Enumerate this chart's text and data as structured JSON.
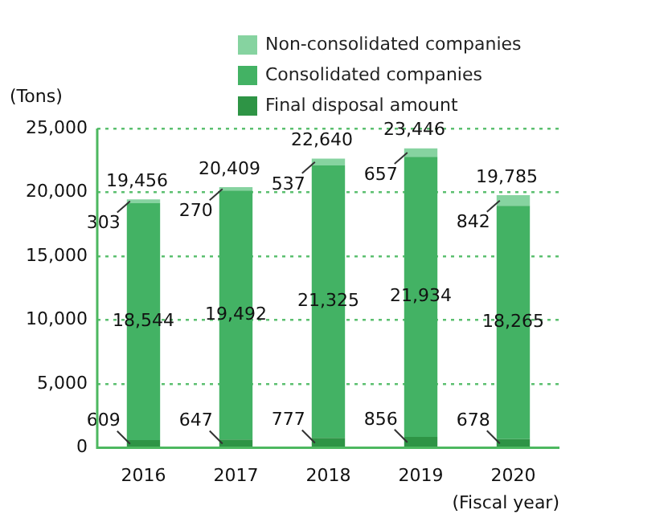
{
  "chart_data": {
    "type": "bar",
    "stacked": true,
    "ylabel": "(Tons)",
    "xlabel": "(Fiscal year)",
    "categories": [
      "2016",
      "2017",
      "2018",
      "2019",
      "2020"
    ],
    "series": [
      {
        "name": "Final disposal amount",
        "color": "#2e9445",
        "values": [
          609,
          647,
          777,
          856,
          678
        ],
        "value_labels": [
          "609",
          "647",
          "777",
          "856",
          "678"
        ]
      },
      {
        "name": "Consolidated companies",
        "color": "#43b264",
        "values": [
          18544,
          19492,
          21325,
          21934,
          18265
        ],
        "value_labels": [
          "18,544",
          "19,492",
          "21,325",
          "21,934",
          "18,265"
        ]
      },
      {
        "name": "Non-consolidated companies",
        "color": "#86d3a0",
        "values": [
          303,
          270,
          537,
          657,
          842
        ],
        "value_labels": [
          "303",
          "270",
          "537",
          "657",
          "842"
        ]
      }
    ],
    "totals": [
      "19,456",
      "20,409",
      "22,640",
      "23,446",
      "19,785"
    ],
    "ylim": [
      0,
      25000
    ],
    "yticks": [
      {
        "value": 0,
        "label": "0"
      },
      {
        "value": 5000,
        "label": "5,000"
      },
      {
        "value": 10000,
        "label": "10,000"
      },
      {
        "value": 15000,
        "label": "15,000"
      },
      {
        "value": 20000,
        "label": "20,000"
      },
      {
        "value": 25000,
        "label": "25,000"
      }
    ],
    "grid": "y",
    "legend": "top"
  }
}
